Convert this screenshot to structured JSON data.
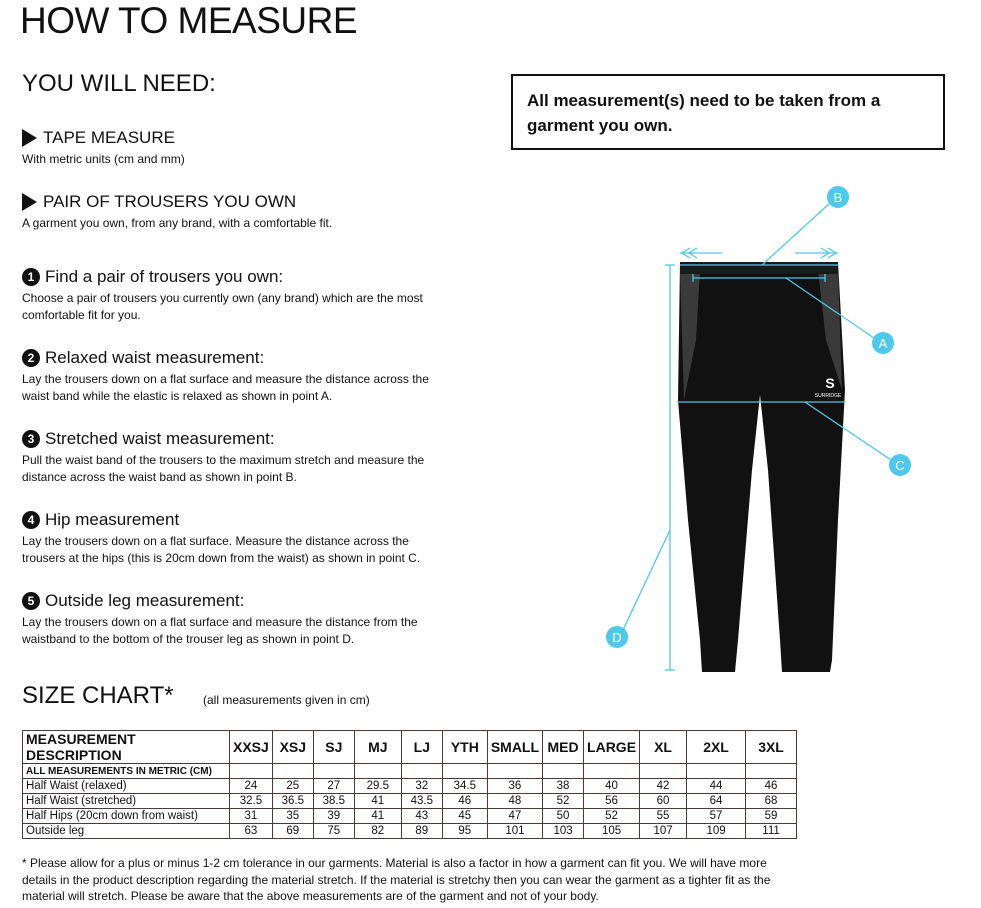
{
  "title": "HOW TO MEASURE",
  "need_heading": "YOU WILL NEED:",
  "needs": [
    {
      "title": "TAPE MEASURE",
      "desc": "With metric units (cm and mm)"
    },
    {
      "title": "PAIR OF TROUSERS YOU OWN",
      "desc": "A garment you own, from any brand, with a comfortable fit."
    }
  ],
  "steps": [
    {
      "num": "1",
      "title": "Find a pair of trousers you own:",
      "desc": "Choose a pair of trousers you currently own (any brand) which are the most comfortable fit for you."
    },
    {
      "num": "2",
      "title": "Relaxed waist measurement:",
      "desc": "Lay the trousers down on a flat surface and measure the distance across the waist band while the elastic is relaxed as shown in point A."
    },
    {
      "num": "3",
      "title": "Stretched waist measurement:",
      "desc": "Pull the waist band of the trousers to the maximum stretch and measure the distance across the waist band as shown in point B."
    },
    {
      "num": "4",
      "title": "Hip measurement",
      "desc": "Lay the trousers down on a flat surface. Measure the distance across the trousers at the hips (this is 20cm down from the waist)  as shown in point C."
    },
    {
      "num": "5",
      "title": "Outside leg measurement:",
      "desc": "Lay the trousers down on a flat surface and measure the distance from the waistband to the bottom of the trouser  leg as shown in point D."
    }
  ],
  "note": "All measurement(s) need to be taken from a garment you own.",
  "diagram": {
    "labels": [
      "A",
      "B",
      "C",
      "D"
    ],
    "brand": "SURRIDGE",
    "accent": "#4fc8ec"
  },
  "size_chart": {
    "heading": "SIZE CHART*",
    "note": "(all measurements given in cm)",
    "headers": [
      "MEASUREMENT DESCRIPTION",
      "XXSJ",
      "XSJ",
      "SJ",
      "MJ",
      "LJ",
      "YTH",
      "SMALL",
      "MED",
      "LARGE",
      "XL",
      "2XL",
      "3XL"
    ],
    "subheader": "ALL MEASUREMENTS IN METRIC (CM)",
    "rows": [
      {
        "label": "Half Waist (relaxed)",
        "values": [
          "24",
          "25",
          "27",
          "29.5",
          "32",
          "34.5",
          "36",
          "38",
          "40",
          "42",
          "44",
          "46"
        ]
      },
      {
        "label": "Half Waist (stretched)",
        "values": [
          "32.5",
          "36.5",
          "38.5",
          "41",
          "43.5",
          "46",
          "48",
          "52",
          "56",
          "60",
          "64",
          "68"
        ]
      },
      {
        "label": "Half Hips (20cm down from waist)",
        "values": [
          "31",
          "35",
          "39",
          "41",
          "43",
          "45",
          "47",
          "50",
          "52",
          "55",
          "57",
          "59"
        ]
      },
      {
        "label": "Outside leg",
        "values": [
          "63",
          "69",
          "75",
          "82",
          "89",
          "95",
          "101",
          "103",
          "105",
          "107",
          "109",
          "111"
        ]
      }
    ]
  },
  "footnote": "* Please allow for a plus or minus 1-2 cm tolerance in our garments. Material is also a factor in how a garment can fit you. We will have more details in the product description regarding the material stretch.  If the material is stretchy then you can wear the garment as a tighter fit as the material will stretch.  Please be aware that the above measurements are of the garment and not of your body."
}
